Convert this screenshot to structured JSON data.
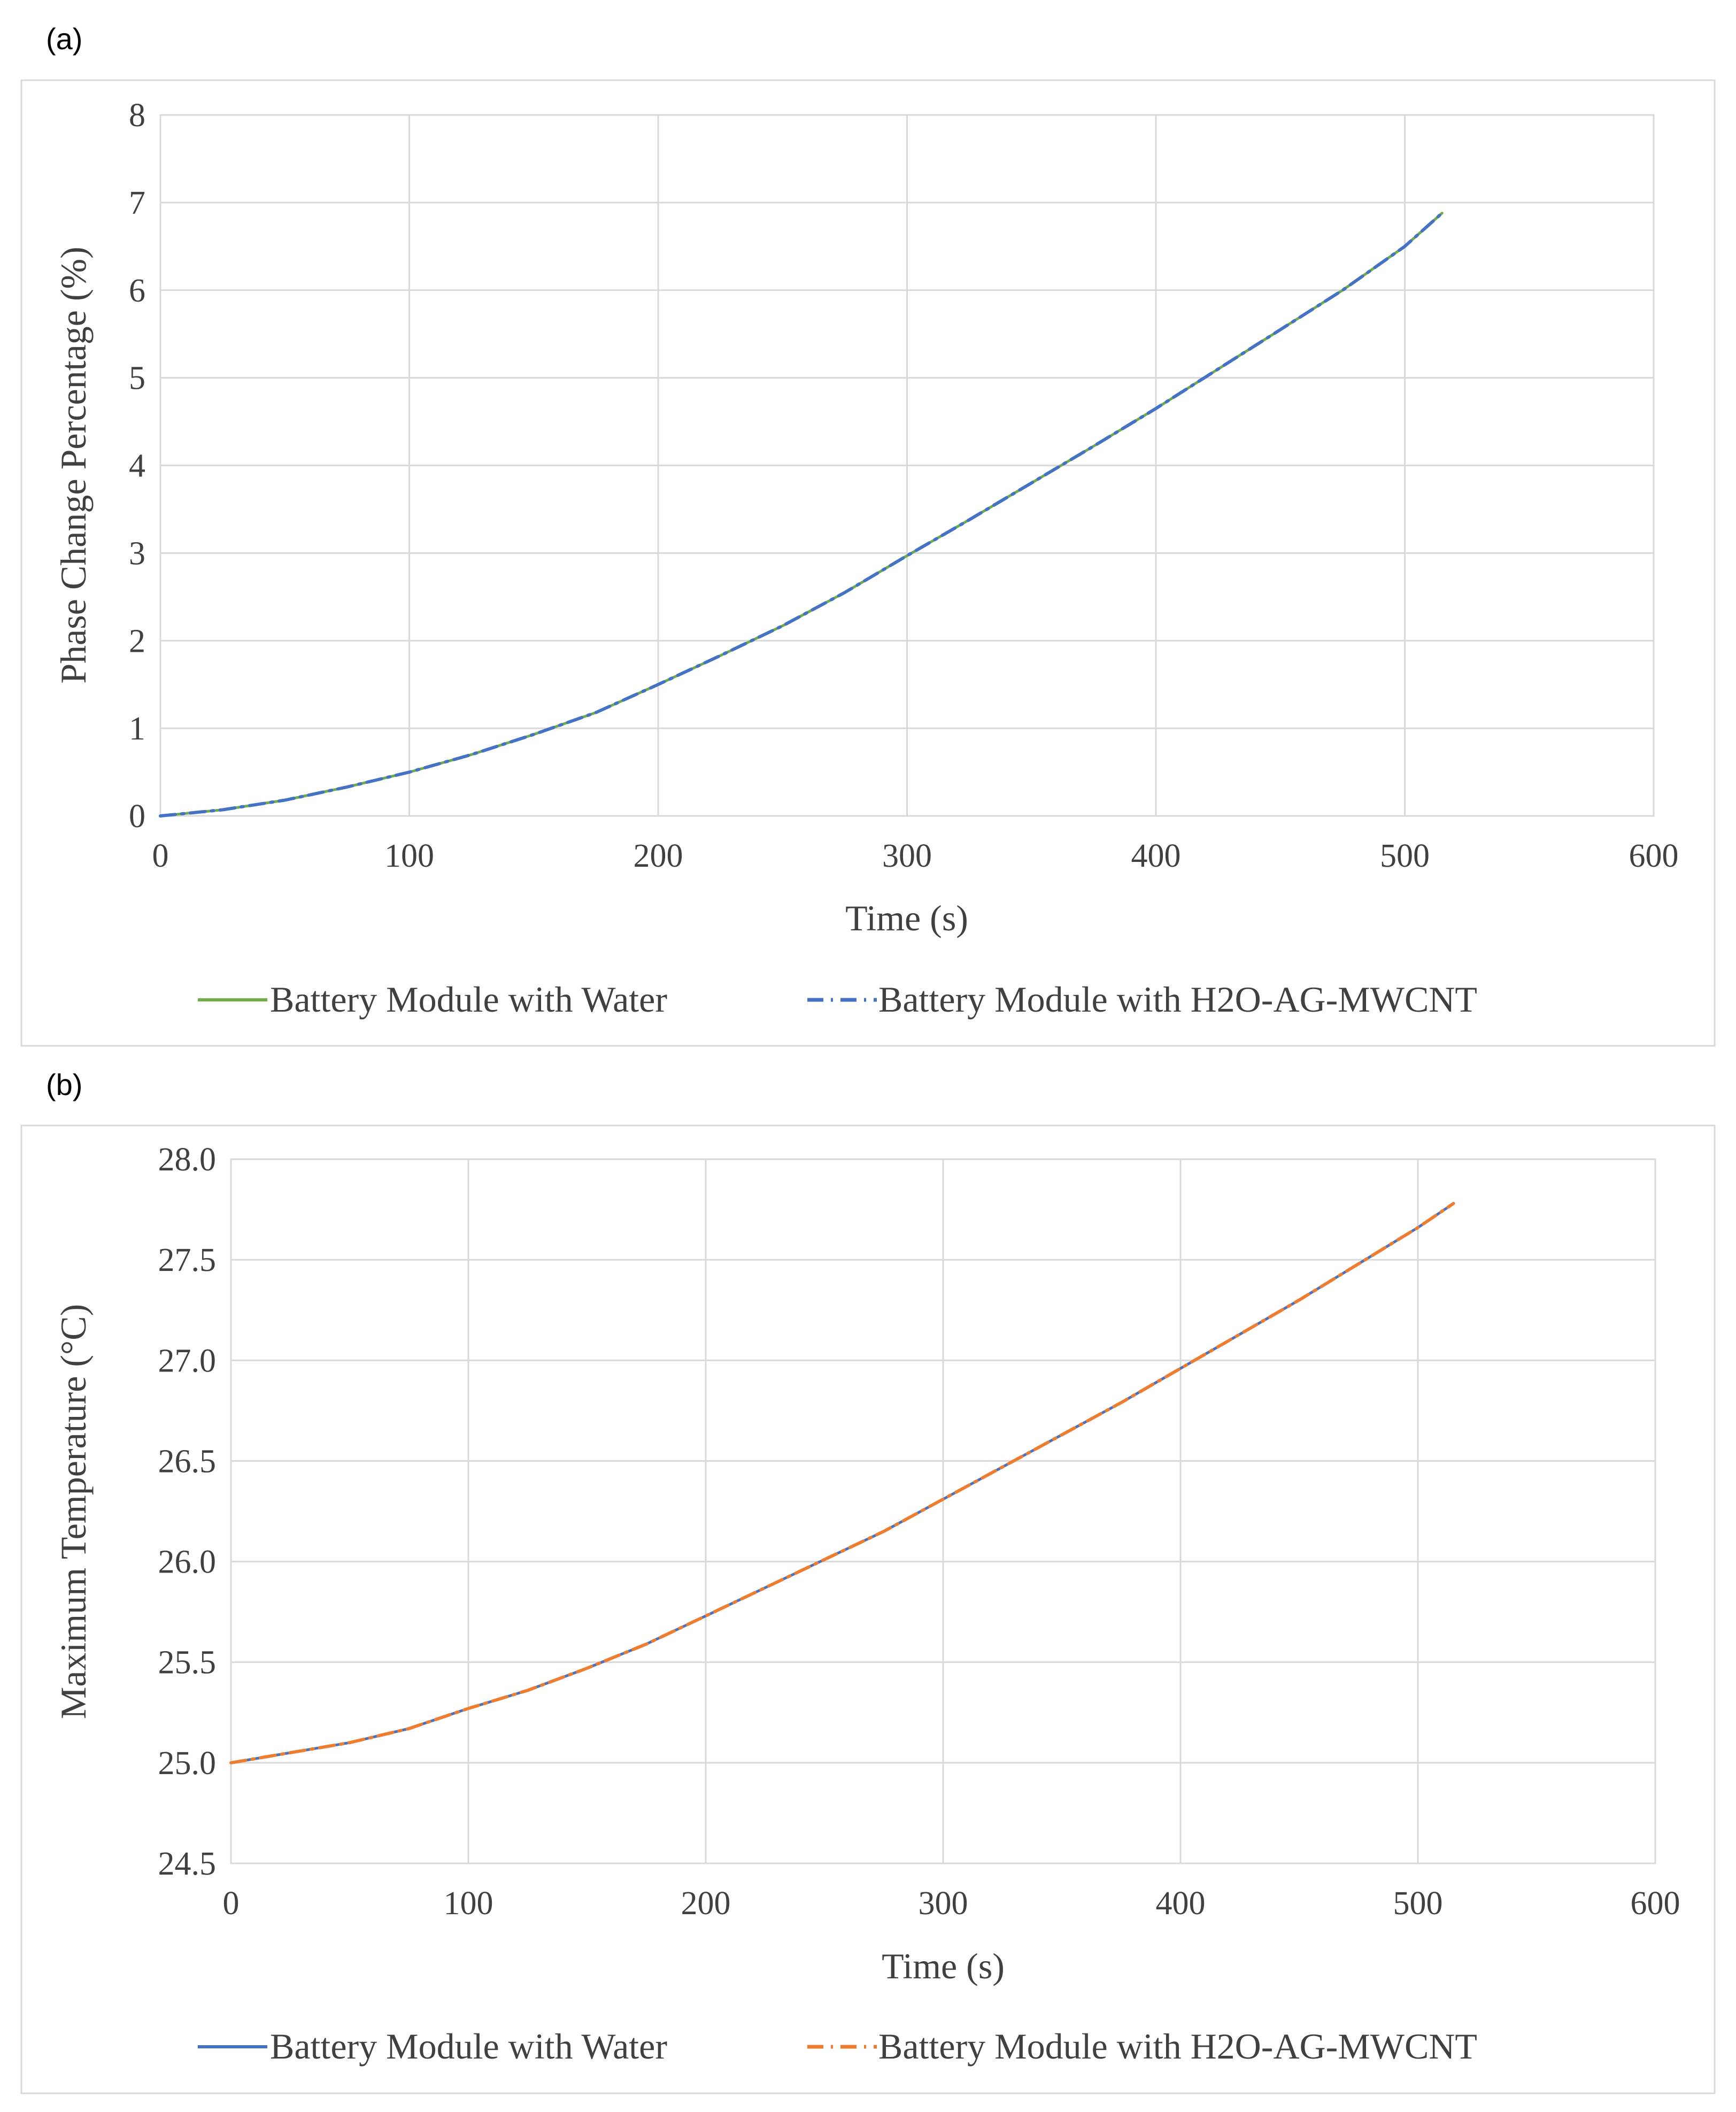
{
  "chart_data": [
    {
      "type": "line",
      "panel_label": "(a)",
      "xlabel": "Time (s)",
      "ylabel": "Phase Change Percentage (%)",
      "xlim": [
        0,
        600
      ],
      "ylim": [
        0,
        8
      ],
      "xticks": [
        0,
        100,
        200,
        300,
        400,
        500,
        600
      ],
      "yticks": [
        0,
        1,
        2,
        3,
        4,
        5,
        6,
        7,
        8
      ],
      "xtick_labels": [
        "0",
        "100",
        "200",
        "300",
        "400",
        "500",
        "600"
      ],
      "ytick_labels": [
        "0",
        "1",
        "2",
        "3",
        "4",
        "5",
        "6",
        "7",
        "8"
      ],
      "grid": true,
      "legend_position": "bottom",
      "x": [
        0,
        25,
        50,
        75,
        100,
        125,
        150,
        175,
        200,
        225,
        250,
        275,
        300,
        325,
        350,
        375,
        400,
        425,
        450,
        475,
        500,
        515
      ],
      "series": [
        {
          "name": "Battery Module with Water",
          "color": "#70ad47",
          "style": "solid",
          "values": [
            0,
            0.07,
            0.18,
            0.33,
            0.5,
            0.7,
            0.93,
            1.18,
            1.5,
            1.83,
            2.17,
            2.55,
            2.97,
            3.38,
            3.8,
            4.22,
            4.65,
            5.1,
            5.55,
            6.0,
            6.5,
            6.88
          ]
        },
        {
          "name": "Battery Module with H2O-AG-MWCNT",
          "color": "#4472c4",
          "style": "dash-dot",
          "values": [
            0,
            0.07,
            0.18,
            0.33,
            0.5,
            0.7,
            0.93,
            1.18,
            1.5,
            1.83,
            2.17,
            2.55,
            2.97,
            3.38,
            3.8,
            4.22,
            4.65,
            5.1,
            5.55,
            6.0,
            6.5,
            6.88
          ]
        }
      ]
    },
    {
      "type": "line",
      "panel_label": "(b)",
      "xlabel": "Time (s)",
      "ylabel": "Maximum Temperature (°C)",
      "xlim": [
        0,
        600
      ],
      "ylim": [
        24.5,
        28.0
      ],
      "xticks": [
        0,
        100,
        200,
        300,
        400,
        500,
        600
      ],
      "yticks": [
        24.5,
        25.0,
        25.5,
        26.0,
        26.5,
        27.0,
        27.5,
        28.0
      ],
      "xtick_labels": [
        "0",
        "100",
        "200",
        "300",
        "400",
        "500",
        "600"
      ],
      "ytick_labels": [
        "24.5",
        "25.0",
        "25.5",
        "26.0",
        "26.5",
        "27.0",
        "27.5",
        "28.0"
      ],
      "grid": true,
      "legend_position": "bottom",
      "x": [
        0,
        25,
        50,
        75,
        100,
        125,
        150,
        175,
        200,
        225,
        250,
        275,
        300,
        325,
        350,
        375,
        400,
        425,
        450,
        475,
        500,
        515
      ],
      "series": [
        {
          "name": "Battery Module with Water",
          "color": "#4472c4",
          "style": "solid",
          "values": [
            25.0,
            25.05,
            25.1,
            25.17,
            25.27,
            25.36,
            25.47,
            25.59,
            25.73,
            25.87,
            26.01,
            26.15,
            26.31,
            26.47,
            26.63,
            26.79,
            26.96,
            27.13,
            27.3,
            27.48,
            27.66,
            27.78
          ]
        },
        {
          "name": "Battery Module with H2O-AG-MWCNT",
          "color": "#ed7d31",
          "style": "dash-dot",
          "values": [
            25.0,
            25.05,
            25.1,
            25.17,
            25.27,
            25.36,
            25.47,
            25.59,
            25.73,
            25.87,
            26.01,
            26.15,
            26.31,
            26.47,
            26.63,
            26.79,
            26.96,
            27.13,
            27.3,
            27.48,
            27.66,
            27.78
          ]
        }
      ]
    }
  ]
}
